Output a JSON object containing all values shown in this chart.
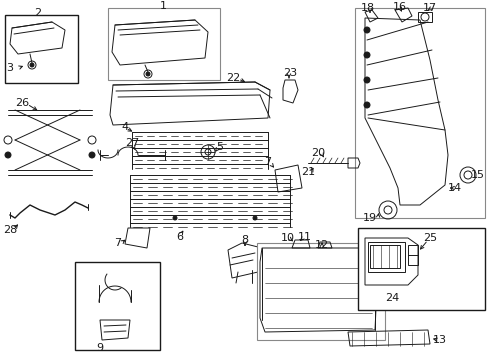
{
  "bg_color": "#ffffff",
  "lc": "#1a1a1a",
  "lw": 0.7,
  "fs": 7,
  "figsize": [
    4.89,
    3.6
  ],
  "dpi": 100
}
